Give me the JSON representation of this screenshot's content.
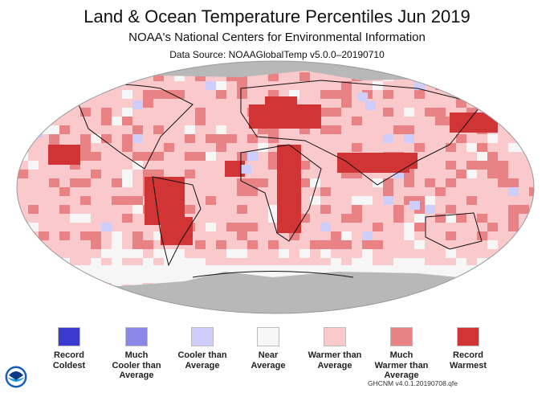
{
  "header": {
    "title": "Land & Ocean Temperature Percentiles Jun 2019",
    "subtitle": "NOAA's National Centers for Environmental Information",
    "source": "Data Source: NOAAGlobalTemp v5.0.0–20190710"
  },
  "legend": [
    {
      "label_lines": [
        "Record",
        "Coldest"
      ],
      "color": "#3a3ad0"
    },
    {
      "label_lines": [
        "Much",
        "Cooler than",
        "Average"
      ],
      "color": "#8a88e6"
    },
    {
      "label_lines": [
        "Cooler than",
        "Average"
      ],
      "color": "#cfcdfa"
    },
    {
      "label_lines": [
        "Near",
        "Average"
      ],
      "color": "#f6f6f6"
    },
    {
      "label_lines": [
        "Warmer than",
        "Average"
      ],
      "color": "#f9c9cc"
    },
    {
      "label_lines": [
        "Much",
        "Warmer than",
        "Average"
      ],
      "color": "#e98285"
    },
    {
      "label_lines": [
        "Record",
        "Warmest"
      ],
      "color": "#d03434"
    }
  ],
  "map": {
    "missing_color": "#b8b8b8"
  },
  "footer": {
    "version": "GHCNM v4.0.1.20190708.qfe",
    "logo_text": "NOAA"
  }
}
